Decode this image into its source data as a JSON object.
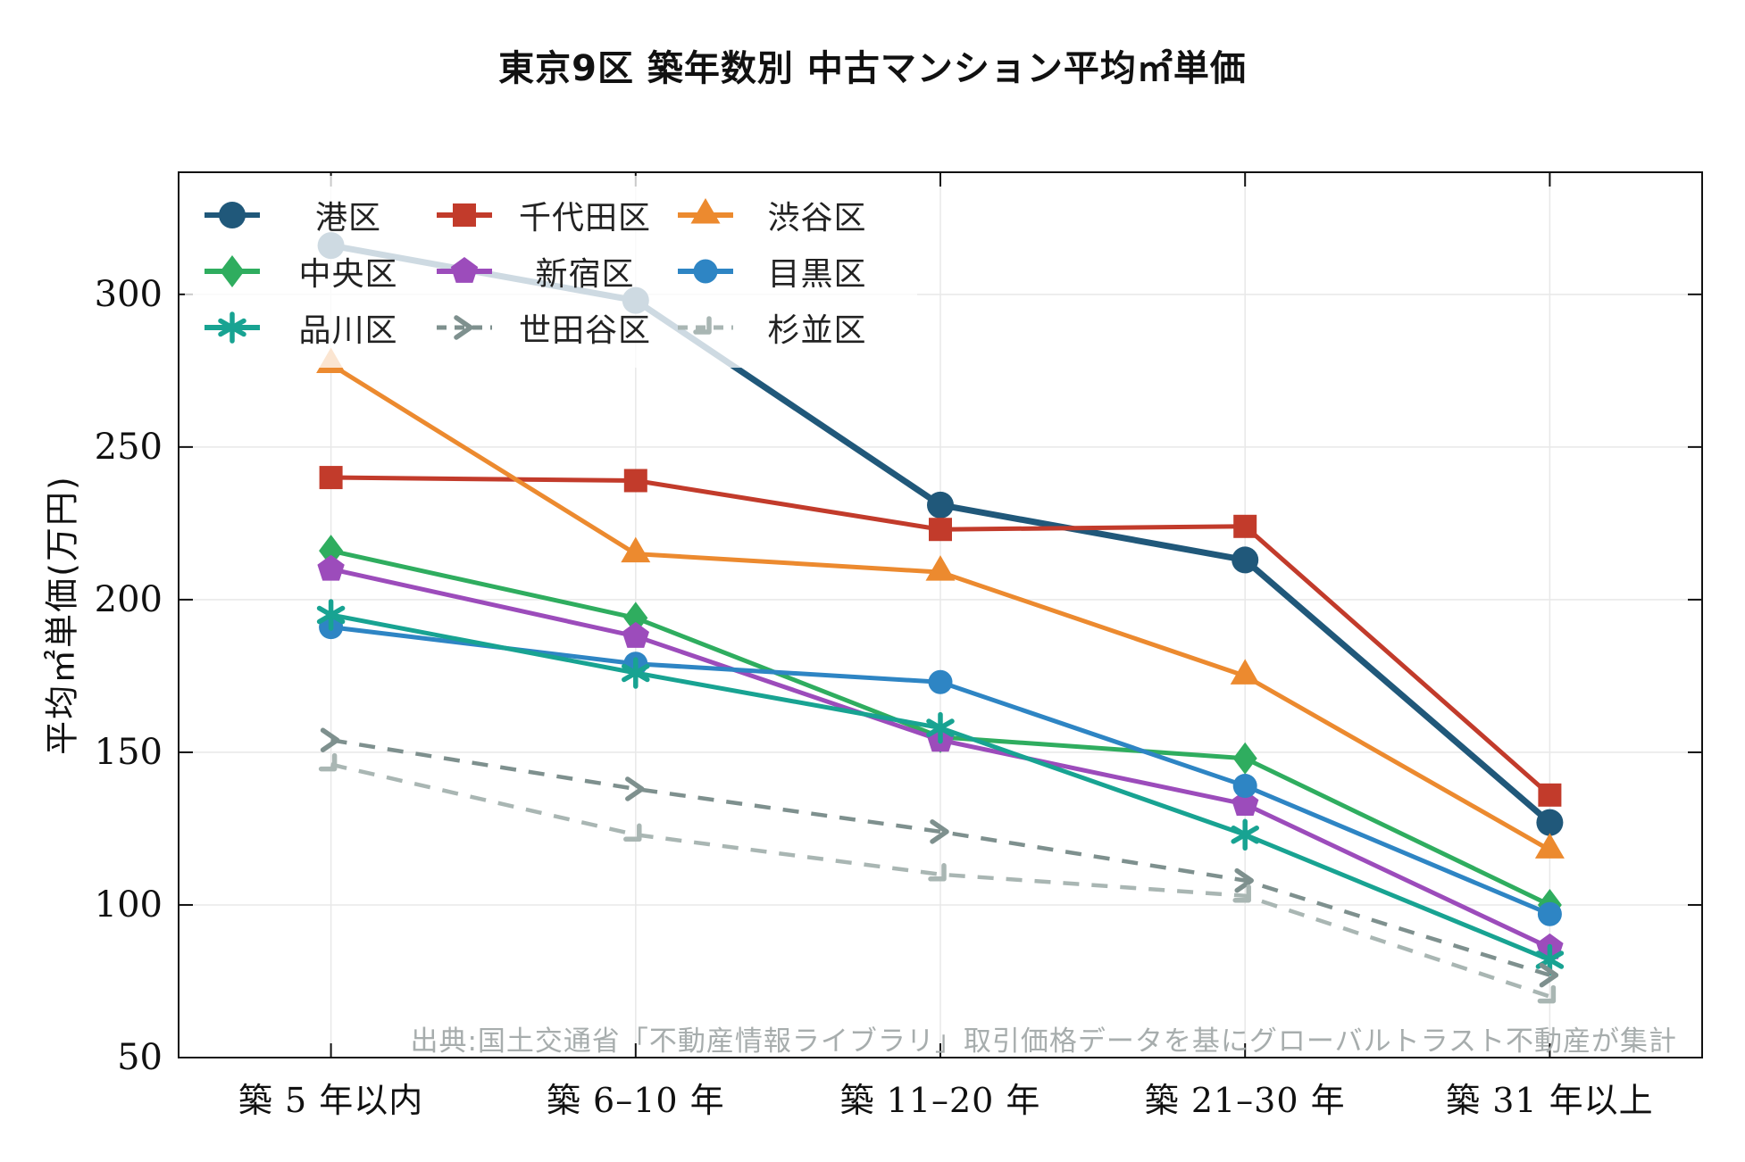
{
  "title": "東京9区 築年数別 中古マンション平均㎡単価",
  "source_note": "出典:国土交通省「不動産情報ライブラリ」取引価格データを基にグローバルトラスト不動産が集計",
  "chart_data": {
    "type": "line",
    "categories": [
      "築 5 年以内",
      "築 6–10 年",
      "築 11–20 年",
      "築 21–30 年",
      "築 31 年以上"
    ],
    "ylabel": "平均㎡単価(万円)",
    "yticks": [
      50,
      100,
      150,
      200,
      250,
      300
    ],
    "ylim": [
      50,
      340
    ],
    "grid": true,
    "legend_position": "top-left-3-columns",
    "series": [
      {
        "id": "minato",
        "name": "港区",
        "color": "#20587a",
        "marker": "circle-lg",
        "dashed": false,
        "values": [
          316,
          298,
          231,
          213,
          127
        ]
      },
      {
        "id": "chiyoda",
        "name": "千代田区",
        "color": "#c23b2b",
        "marker": "square",
        "dashed": false,
        "values": [
          240,
          239,
          223,
          224,
          136
        ]
      },
      {
        "id": "shibuya",
        "name": "渋谷区",
        "color": "#ec8a2f",
        "marker": "triangle",
        "dashed": false,
        "values": [
          277,
          215,
          209,
          175,
          118
        ]
      },
      {
        "id": "chuo",
        "name": "中央区",
        "color": "#2fad5f",
        "marker": "diamond",
        "dashed": false,
        "values": [
          216,
          194,
          155,
          148,
          100
        ]
      },
      {
        "id": "shinjuku",
        "name": "新宿区",
        "color": "#9c4cbb",
        "marker": "pentagon",
        "dashed": false,
        "values": [
          210,
          188,
          154,
          133,
          86
        ]
      },
      {
        "id": "meguro",
        "name": "目黒区",
        "color": "#2e85c4",
        "marker": "circle",
        "dashed": false,
        "values": [
          191,
          179,
          173,
          139,
          97
        ]
      },
      {
        "id": "shinagawa",
        "name": "品川区",
        "color": "#18a392",
        "marker": "asterisk",
        "dashed": false,
        "values": [
          195,
          176,
          158,
          123,
          82
        ]
      },
      {
        "id": "setagaya",
        "name": "世田谷区",
        "color": "#7e908e",
        "marker": "chevron",
        "dashed": true,
        "values": [
          154,
          138,
          124,
          108,
          77
        ]
      },
      {
        "id": "suginami",
        "name": "杉並区",
        "color": "#a9b6b3",
        "marker": "corner",
        "dashed": true,
        "values": [
          146,
          123,
          110,
          103,
          70
        ]
      }
    ]
  }
}
